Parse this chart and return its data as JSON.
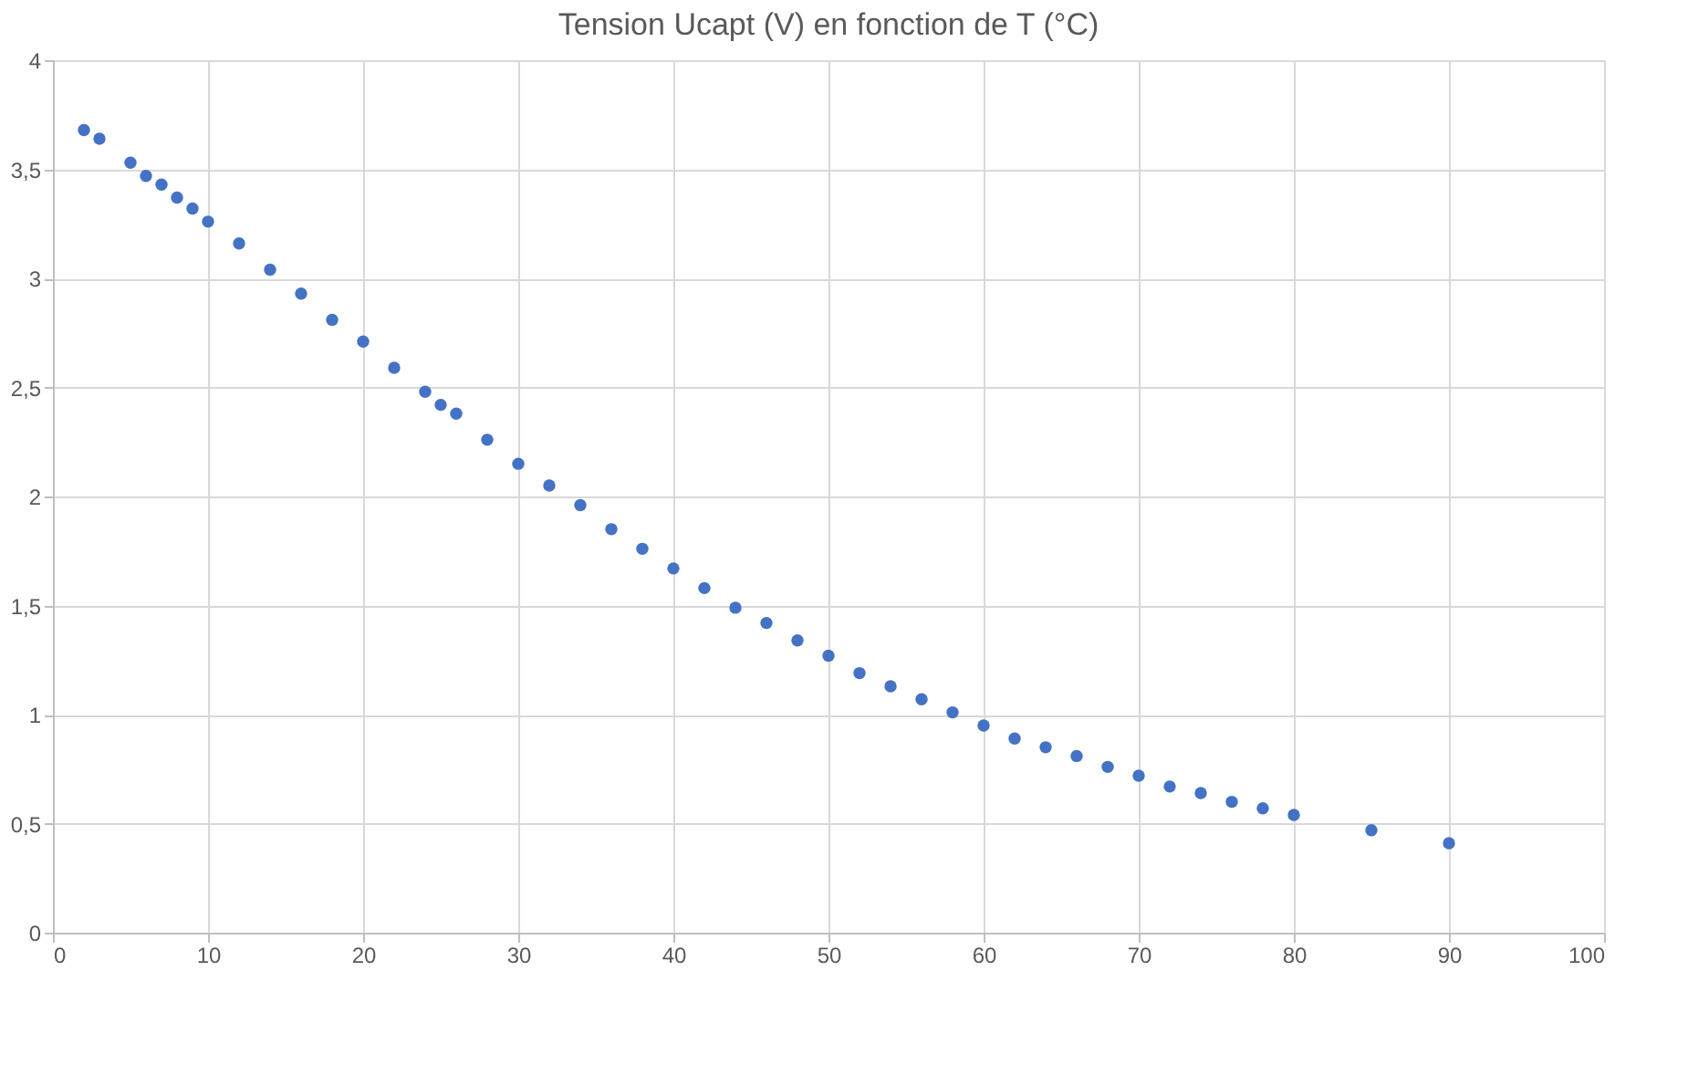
{
  "chart_data": {
    "type": "scatter",
    "title": "Tension Ucapt (V) en fonction de T (°C)",
    "x": [
      2,
      3,
      5,
      6,
      7,
      8,
      9,
      10,
      12,
      14,
      16,
      18,
      20,
      22,
      24,
      25,
      26,
      28,
      30,
      32,
      34,
      36,
      38,
      40,
      42,
      44,
      46,
      48,
      50,
      52,
      54,
      56,
      58,
      60,
      62,
      64,
      66,
      68,
      70,
      72,
      74,
      76,
      78,
      80,
      85,
      90
    ],
    "series": [
      {
        "color": "#4472c4",
        "values": [
          3.68,
          3.64,
          3.53,
          3.47,
          3.43,
          3.37,
          3.32,
          3.26,
          3.16,
          3.04,
          2.93,
          2.81,
          2.71,
          2.59,
          2.48,
          2.42,
          2.38,
          2.26,
          2.15,
          2.05,
          1.96,
          1.85,
          1.76,
          1.67,
          1.58,
          1.49,
          1.42,
          1.34,
          1.27,
          1.19,
          1.13,
          1.07,
          1.01,
          0.95,
          0.89,
          0.85,
          0.81,
          0.76,
          0.72,
          0.67,
          0.64,
          0.6,
          0.57,
          0.54,
          0.47,
          0.41
        ]
      }
    ],
    "xlim": [
      0,
      100
    ],
    "xticks": [
      0,
      10,
      20,
      30,
      40,
      50,
      60,
      70,
      80,
      90,
      100
    ],
    "ylim": [
      0,
      4
    ],
    "yticks": [
      0,
      {
        "value": 0.5,
        "label": "0,5"
      },
      1,
      {
        "value": 1.5,
        "label": "1,5"
      },
      2,
      {
        "value": 2.5,
        "label": "2,5"
      },
      3,
      {
        "value": 3.5,
        "label": "3,5"
      },
      4
    ],
    "grid": true,
    "marker": "circle"
  }
}
